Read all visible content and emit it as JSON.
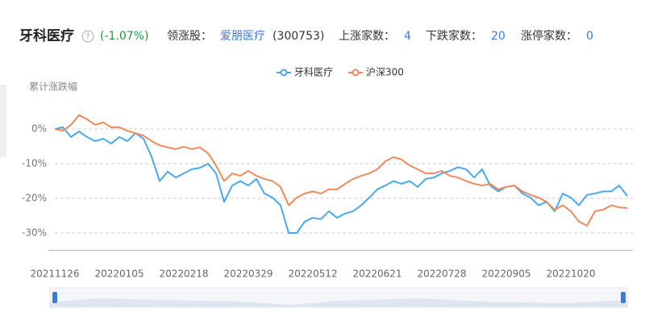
{
  "header": {
    "title": "牙科医疗",
    "help": "?",
    "change": "(-1.07%)",
    "leader_label": "领涨股：",
    "leader_name": "爱朋医疗",
    "leader_code": "(300753)",
    "up_label": "上涨家数：",
    "up": "4",
    "down_label": "下跌家数：",
    "down": "20",
    "limit_label": "涨停家数：",
    "limit": "0"
  },
  "chart_data": {
    "type": "line",
    "y_label": "累计涨跌幅",
    "categories": [
      "20211126",
      null,
      null,
      null,
      null,
      null,
      null,
      null,
      "20220105",
      null,
      null,
      null,
      null,
      null,
      null,
      null,
      "20220218",
      null,
      null,
      null,
      null,
      null,
      null,
      null,
      "20220329",
      null,
      null,
      null,
      null,
      null,
      null,
      null,
      "20220512",
      null,
      null,
      null,
      null,
      null,
      null,
      null,
      "20220621",
      null,
      null,
      null,
      null,
      null,
      null,
      null,
      "20220728",
      null,
      null,
      null,
      null,
      null,
      null,
      null,
      "20220905",
      null,
      null,
      null,
      null,
      null,
      null,
      null,
      "20221020",
      null,
      null,
      null,
      null,
      null,
      null,
      null
    ],
    "series": [
      {
        "name": "牙科医疗",
        "color": "#4aa8f0",
        "values": [
          0,
          0.5,
          -2.3,
          -0.7,
          -2.3,
          -3.5,
          -2.8,
          -4.2,
          -2.3,
          -3.5,
          -1.2,
          -2.8,
          -8,
          -15,
          -12.3,
          -14,
          -12.8,
          -11.6,
          -11.2,
          -10,
          -12.8,
          -21,
          -16.3,
          -15,
          -16.3,
          -14.4,
          -18.6,
          -19.8,
          -22,
          -30,
          -30,
          -26.7,
          -25.6,
          -26,
          -23.7,
          -25.6,
          -24.4,
          -23.7,
          -22,
          -19.8,
          -17.4,
          -16.3,
          -15,
          -15.8,
          -15,
          -16.7,
          -14.4,
          -14,
          -12.8,
          -12.1,
          -11,
          -11.6,
          -14,
          -11.6,
          -16.3,
          -18,
          -16.7,
          -16.3,
          -18.6,
          -19.8,
          -22,
          -21,
          -23.7,
          -18.6,
          -19.8,
          -22,
          -19,
          -18.6,
          -18,
          -18,
          -16.3,
          -19.3
        ]
      },
      {
        "name": "沪深300",
        "color": "#f08a5d",
        "values": [
          0,
          -0.5,
          1.2,
          4,
          2.8,
          1.2,
          1.9,
          0.5,
          0.5,
          -0.5,
          -1.2,
          -1.9,
          -3.5,
          -4.7,
          -5.3,
          -5.8,
          -5.1,
          -5.8,
          -5.3,
          -7,
          -10.5,
          -15,
          -12.8,
          -13.5,
          -12.1,
          -13.5,
          -14.4,
          -15,
          -16.7,
          -22,
          -19.8,
          -18.6,
          -18,
          -18.6,
          -17.4,
          -17.4,
          -15.8,
          -14.4,
          -13.5,
          -12.8,
          -11.6,
          -9.3,
          -8.1,
          -8.8,
          -10.5,
          -11.6,
          -12.8,
          -12.8,
          -12.1,
          -13.5,
          -14,
          -15,
          -15.8,
          -16.3,
          -15.8,
          -17.4,
          -16.7,
          -16.3,
          -18,
          -19,
          -19.8,
          -21,
          -23.3,
          -22,
          -23.7,
          -26.7,
          -27.9,
          -23.7,
          -23.3,
          -22,
          -22.6,
          -22.8
        ]
      }
    ],
    "ylim": [
      -35,
      10
    ],
    "yticks": [
      {
        "value": 0,
        "label": "0%"
      },
      {
        "value": -10,
        "label": "-10%"
      },
      {
        "value": -20,
        "label": "-20%"
      },
      {
        "value": -30,
        "label": "-30%"
      }
    ],
    "grid": true
  }
}
